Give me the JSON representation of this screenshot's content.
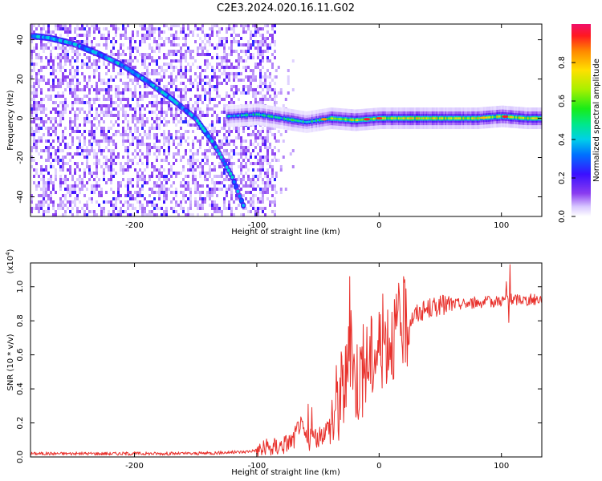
{
  "figure": {
    "title": "C2E3.2024.020.16.11.G02"
  },
  "chart_data": [
    {
      "type": "heatmap",
      "title": "C2E3.2024.020.16.11.G02",
      "xlabel": "Height of straight line (km)",
      "ylabel": "Frequency (Hz)",
      "xlim": [
        -285,
        133
      ],
      "ylim": [
        -50,
        48
      ],
      "x_ticks": [
        -200,
        -100,
        0,
        100
      ],
      "x_tick_labels": [
        "-200",
        "-100",
        "0",
        "100"
      ],
      "y_ticks": [
        -40,
        -20,
        0,
        20,
        40
      ],
      "y_tick_labels": [
        "-40",
        "-20",
        "0",
        "20",
        "40"
      ],
      "colorbar": {
        "label": "Normalized spectral amplitude",
        "range": [
          0,
          1
        ],
        "ticks": [
          0.0,
          0.2,
          0.4,
          0.6,
          0.8
        ],
        "tick_labels": [
          "0.0",
          "0.2",
          "0.4",
          "0.6",
          "0.8"
        ]
      },
      "ridge": {
        "description_series": "chirp",
        "x": [
          -285,
          -270,
          -250,
          -230,
          -210,
          -190,
          -170,
          -150,
          -135,
          -120,
          -110
        ],
        "y": [
          42,
          41,
          38,
          33,
          27,
          19,
          10,
          0,
          -13,
          -30,
          -46
        ]
      },
      "band": {
        "description_series": "carrier",
        "x": [
          -125,
          -100,
          -80,
          -60,
          -40,
          -20,
          0,
          20,
          40,
          60,
          80,
          100,
          120,
          133
        ],
        "y": [
          1,
          2,
          0,
          -2,
          0,
          -1,
          0,
          0,
          0,
          0,
          0,
          1,
          0,
          0
        ]
      },
      "noise_region_x": [
        -285,
        -85
      ],
      "grid": false
    },
    {
      "type": "line",
      "xlabel": "Height of straight line (km)",
      "ylabel": "SNR (10 * v/v)",
      "y_scale_label": "(x10",
      "y_scale_exponent": "4",
      "y_scale_suffix": ")",
      "xlim": [
        -285,
        133
      ],
      "ylim": [
        0,
        1.14
      ],
      "x_ticks": [
        -200,
        -100,
        0,
        100
      ],
      "x_tick_labels": [
        "-200",
        "-100",
        "0",
        "100"
      ],
      "y_ticks": [
        0.0,
        0.2,
        0.4,
        0.6,
        0.8,
        1.0
      ],
      "y_tick_labels": [
        "0.0",
        "0.2",
        "0.4",
        "0.6",
        "0.8",
        "1.0"
      ],
      "color": "#e8312c",
      "series": [
        {
          "x": [
            -285,
            -250,
            -200,
            -150,
            -110,
            -90,
            -80,
            -70,
            -65,
            -62,
            -58,
            -55,
            -50,
            -45,
            -40,
            -35,
            -30,
            -25,
            -23,
            -20,
            -15,
            -10,
            -5,
            0,
            5,
            10,
            15,
            20,
            25,
            30,
            40,
            50,
            60,
            70,
            80,
            90,
            100,
            105,
            110,
            115,
            120,
            133
          ],
          "y": [
            0.02,
            0.02,
            0.02,
            0.02,
            0.03,
            0.05,
            0.07,
            0.1,
            0.2,
            0.15,
            0.08,
            0.12,
            0.1,
            0.15,
            0.2,
            0.3,
            0.4,
            0.5,
            0.72,
            0.45,
            0.5,
            0.55,
            0.6,
            0.65,
            0.7,
            0.72,
            0.74,
            0.78,
            0.8,
            0.84,
            0.87,
            0.89,
            0.9,
            0.9,
            0.91,
            0.91,
            0.92,
            0.93,
            0.92,
            0.93,
            0.92,
            0.93
          ]
        }
      ],
      "spikes": [
        {
          "x": -24,
          "y": 1.06
        },
        {
          "x": -23,
          "y": 0.86
        },
        {
          "x": -58,
          "y": 0.31
        },
        {
          "x": -55,
          "y": 0.29
        },
        {
          "x": 107,
          "y": 1.13
        },
        {
          "x": 104,
          "y": 1.03
        },
        {
          "x": 106,
          "y": 0.79
        }
      ],
      "grid": false
    }
  ]
}
